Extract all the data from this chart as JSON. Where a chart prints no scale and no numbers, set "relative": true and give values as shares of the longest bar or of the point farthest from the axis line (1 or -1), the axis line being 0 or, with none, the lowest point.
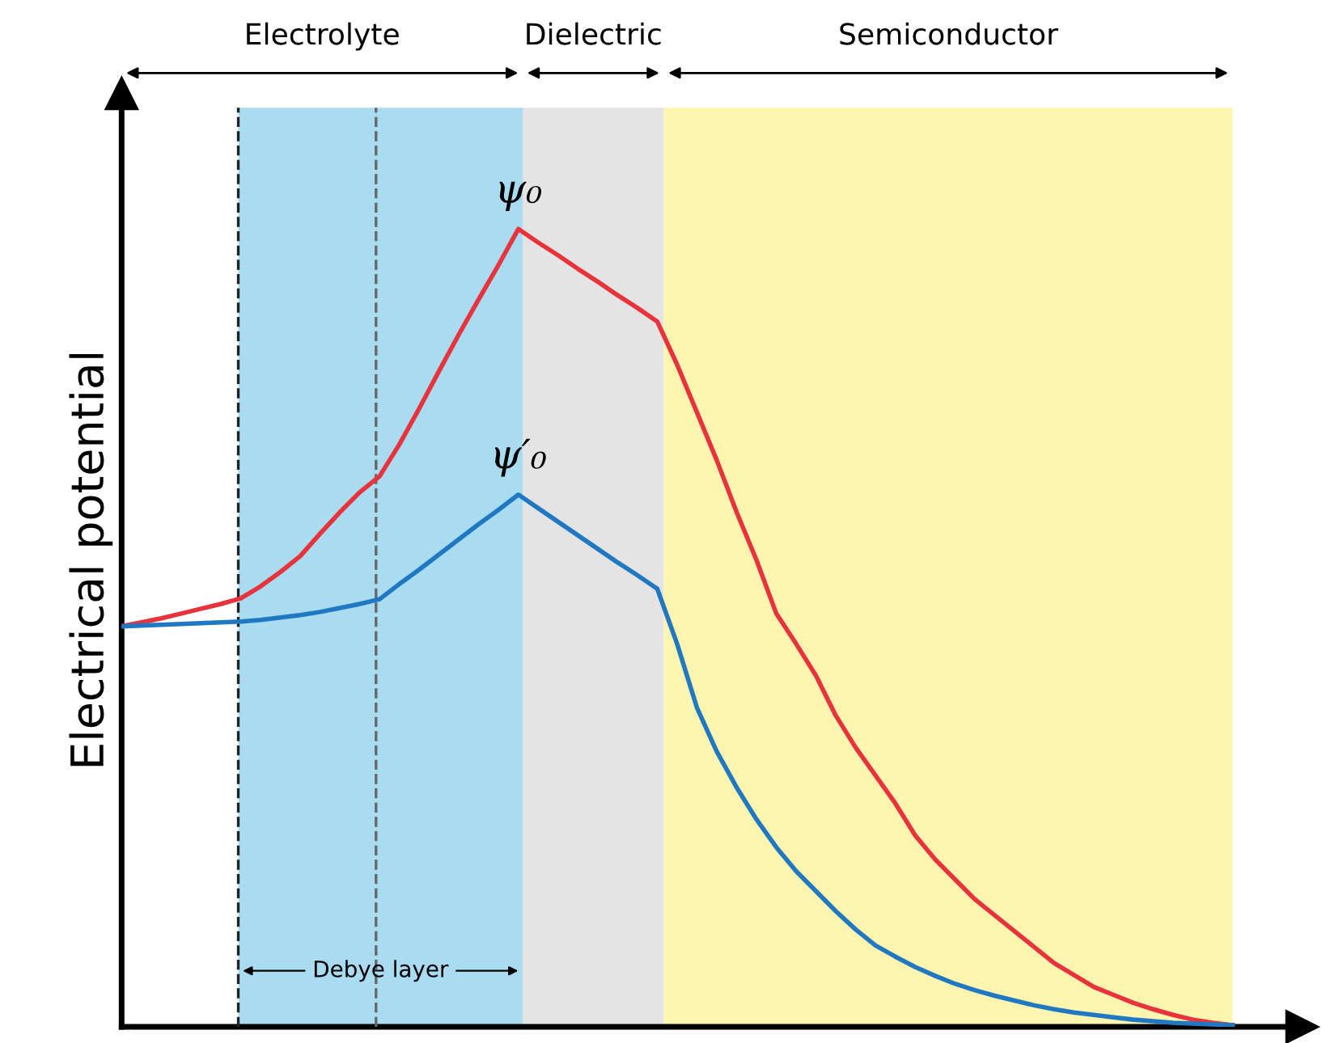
{
  "chart_data": {
    "type": "line",
    "relative": true,
    "ylabel": "Electrical potential",
    "marker": "none",
    "line_style": "solid",
    "categories": [
      null,
      null,
      null,
      null,
      null,
      null,
      null,
      null,
      null,
      null,
      null,
      null,
      null,
      null,
      null,
      null,
      null,
      null,
      null,
      null,
      null,
      null,
      null,
      null,
      null,
      null,
      null,
      null,
      null,
      null,
      null,
      null,
      null,
      null,
      null,
      null,
      null,
      null,
      null,
      null,
      null,
      null,
      null,
      null,
      null,
      null,
      null,
      null,
      null,
      null,
      null,
      null,
      null,
      null,
      null,
      null,
      null
    ],
    "series": [
      {
        "color": "#e8323c",
        "values": [
          0.502,
          0.507,
          0.512,
          0.518,
          0.524,
          0.53,
          0.537,
          0.552,
          0.57,
          0.59,
          0.618,
          0.645,
          0.67,
          0.69,
          0.73,
          0.775,
          0.822,
          0.868,
          0.912,
          0.955,
          1.0,
          0.983,
          0.967,
          0.95,
          0.934,
          0.917,
          0.901,
          0.884,
          0.83,
          0.77,
          0.71,
          0.645,
          0.585,
          0.518,
          0.48,
          0.44,
          0.39,
          0.35,
          0.315,
          0.28,
          0.24,
          0.21,
          0.185,
          0.16,
          0.14,
          0.12,
          0.1,
          0.08,
          0.065,
          0.05,
          0.04,
          0.03,
          0.022,
          0.015,
          0.009,
          0.005,
          0.002
        ]
      },
      {
        "color": "#1f78c1",
        "values": [
          0.502,
          0.503,
          0.504,
          0.505,
          0.506,
          0.507,
          0.508,
          0.51,
          0.513,
          0.516,
          0.52,
          0.525,
          0.53,
          0.536,
          0.555,
          0.573,
          0.592,
          0.611,
          0.63,
          0.648,
          0.667,
          0.65,
          0.633,
          0.616,
          0.599,
          0.582,
          0.566,
          0.549,
          0.48,
          0.4,
          0.345,
          0.3,
          0.26,
          0.225,
          0.195,
          0.17,
          0.145,
          0.122,
          0.102,
          0.088,
          0.075,
          0.064,
          0.054,
          0.046,
          0.039,
          0.033,
          0.027,
          0.022,
          0.018,
          0.015,
          0.012,
          0.009,
          0.007,
          0.005,
          0.004,
          0.003,
          0.002
        ]
      }
    ],
    "annotations": [
      "Electrolyte",
      "Dielectric",
      "Semiconductor",
      "ψ₀",
      "ψ′₀",
      "Debye layer"
    ]
  }
}
